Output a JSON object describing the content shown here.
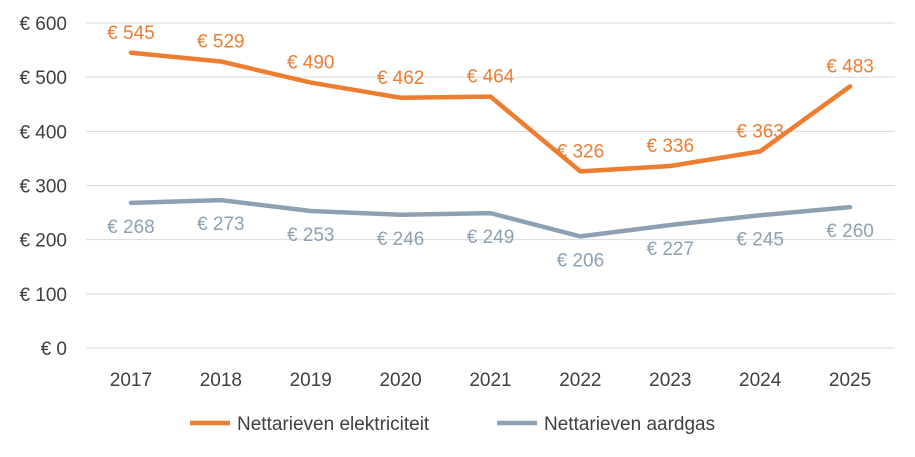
{
  "chart_data": {
    "type": "line",
    "title": "",
    "xlabel": "",
    "ylabel": "",
    "categories": [
      "2017",
      "2018",
      "2019",
      "2020",
      "2021",
      "2022",
      "2023",
      "2024",
      "2025"
    ],
    "ylim": [
      0,
      600
    ],
    "yticks": [
      0,
      100,
      200,
      300,
      400,
      500,
      600
    ],
    "ytick_labels": [
      "€ 0",
      "€ 100",
      "€ 200",
      "€ 300",
      "€ 400",
      "€ 500",
      "€ 600"
    ],
    "grid": true,
    "legend_position": "bottom",
    "series": [
      {
        "name": "Nettarieven elektriciteit",
        "color": "#ED7D31",
        "values": [
          545,
          529,
          490,
          462,
          464,
          326,
          336,
          363,
          483
        ],
        "labels": [
          "€ 545",
          "€ 529",
          "€ 490",
          "€ 462",
          "€ 464",
          "€ 326",
          "€ 336",
          "€ 363",
          "€ 483"
        ],
        "label_position": "above"
      },
      {
        "name": "Nettarieven aardgas",
        "color": "#8EA1B3",
        "values": [
          268,
          273,
          253,
          246,
          249,
          206,
          227,
          245,
          260
        ],
        "labels": [
          "€ 268",
          "€ 273",
          "€ 253",
          "€ 246",
          "€ 249",
          "€ 206",
          "€ 227",
          "€ 245",
          "€ 260"
        ],
        "label_position": "below"
      }
    ]
  }
}
